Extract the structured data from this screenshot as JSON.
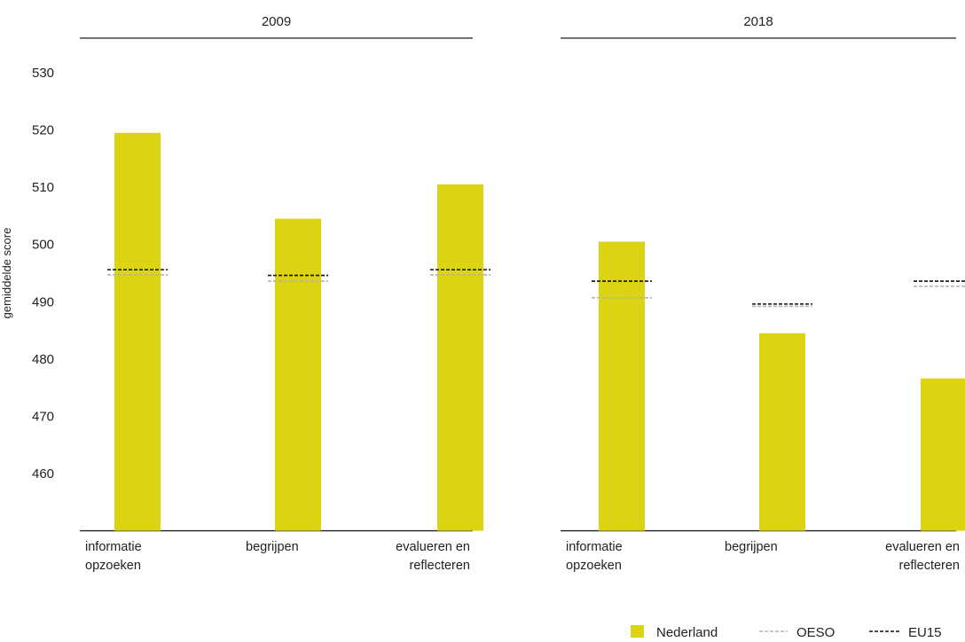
{
  "chart_data": {
    "type": "bar",
    "ylabel": "gemiddelde score",
    "ylim": [
      450,
      535
    ],
    "yticks": [
      460,
      470,
      480,
      490,
      500,
      510,
      520,
      530
    ],
    "grid": false,
    "legend_position": "bottom-right",
    "categories": [
      [
        "informatie",
        "opzoeken"
      ],
      [
        "begrijpen"
      ],
      [
        "evalueren en",
        "reflecteren"
      ]
    ],
    "panels": [
      {
        "title": "2009",
        "series": [
          {
            "name": "Nederland",
            "values": [
              519.5,
              504.5,
              510.5
            ]
          },
          {
            "name": "OESO",
            "values": [
              494.7,
              493.6,
              494.7
            ]
          },
          {
            "name": "EU15",
            "values": [
              495.6,
              494.6,
              495.6
            ]
          }
        ]
      },
      {
        "title": "2018",
        "series": [
          {
            "name": "Nederland",
            "values": [
              500.5,
              484.5,
              476.6
            ]
          },
          {
            "name": "OESO",
            "values": [
              490.7,
              489.2,
              492.7
            ]
          },
          {
            "name": "EU15",
            "values": [
              493.6,
              489.6,
              493.6
            ]
          }
        ]
      }
    ],
    "legend": [
      "Nederland",
      "OESO",
      "EU15"
    ],
    "colors": {
      "Nederland": "#dcd413",
      "OESO": "#b3b3b3",
      "EU15": "#111111",
      "axis": "#222222"
    }
  }
}
